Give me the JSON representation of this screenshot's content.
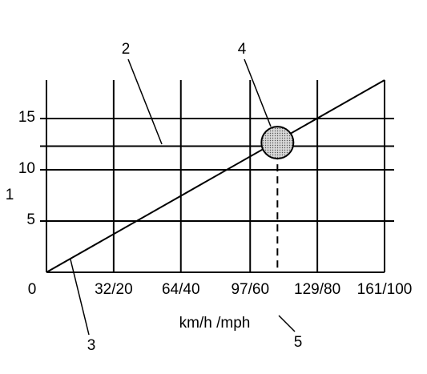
{
  "chart_data": {
    "type": "line",
    "xlabel": "km/h /mph",
    "ylabel": "1",
    "xlim": [
      0,
      161
    ],
    "ylim": [
      0,
      18.75
    ],
    "xticks": [
      0,
      {
        "value": 32,
        "label": "32/20"
      },
      {
        "value": 64,
        "label": "64/40"
      },
      {
        "value": 97,
        "label": "97/60"
      },
      {
        "value": 129,
        "label": "129/80"
      },
      {
        "value": 161,
        "label": "161/100"
      }
    ],
    "yticks": [
      5,
      10,
      15
    ],
    "grid": true,
    "series": [
      {
        "color": "#000000",
        "x": [
          0,
          161
        ],
        "values": [
          0,
          18.75
        ]
      }
    ],
    "hline": 12.3,
    "marker": {
      "x": 110,
      "y": 12.65
    },
    "annotations": [
      "2",
      "3",
      "4",
      "5"
    ]
  }
}
